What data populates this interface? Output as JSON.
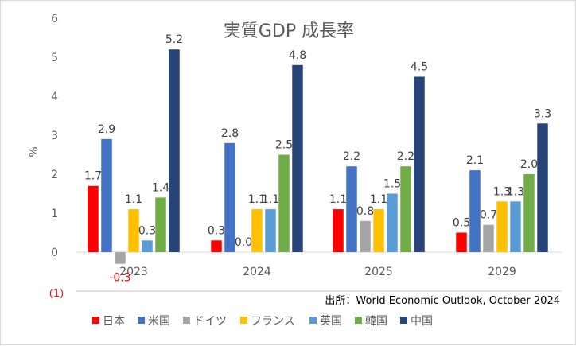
{
  "chart_data": {
    "type": "bar",
    "title": "実質GDP 成長率",
    "ylabel": "%",
    "xlabel": "",
    "ylim": [
      0,
      6
    ],
    "yticks": [
      0,
      1,
      2,
      3,
      4,
      5,
      6
    ],
    "grid": false,
    "legend_position": "bottom",
    "categories": [
      "2023",
      "2024",
      "2025",
      "2029"
    ],
    "series": [
      {
        "name": "日本",
        "color": "#FF0000",
        "values": [
          1.7,
          0.3,
          1.1,
          0.5
        ]
      },
      {
        "name": "米国",
        "color": "#4472C4",
        "values": [
          2.9,
          2.8,
          2.2,
          2.1
        ]
      },
      {
        "name": "ドイツ",
        "color": "#A5A5A5",
        "values": [
          -0.3,
          0.0,
          0.8,
          0.7
        ]
      },
      {
        "name": "フランス",
        "color": "#FFC000",
        "values": [
          1.1,
          1.1,
          1.1,
          1.3
        ]
      },
      {
        "name": "英国",
        "color": "#5B9BD5",
        "values": [
          0.3,
          1.1,
          1.5,
          1.3
        ]
      },
      {
        "name": "韓国",
        "color": "#70AD47",
        "values": [
          1.4,
          2.5,
          2.2,
          2.0
        ]
      },
      {
        "name": "中国",
        "color": "#264478",
        "values": [
          5.2,
          4.8,
          4.5,
          3.3
        ]
      }
    ],
    "negative_label_color": "#FF0000"
  },
  "note": "(1)",
  "source": "出所：World Economic Outlook, October 2024"
}
